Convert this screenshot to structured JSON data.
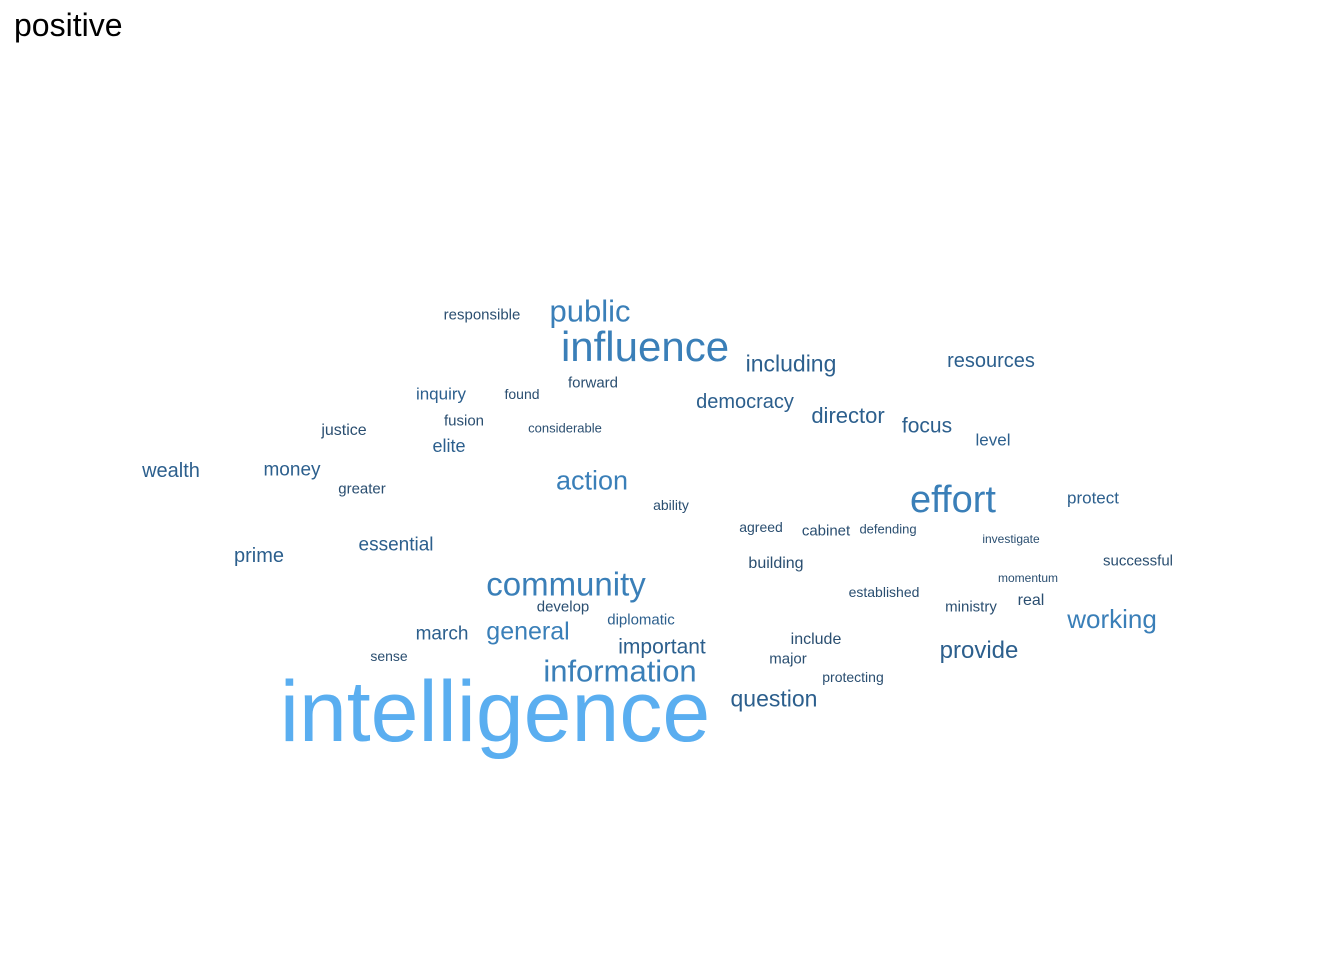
{
  "title": "positive",
  "chart_data": {
    "type": "wordcloud",
    "title": "positive",
    "colors": {
      "highest": "#5aaef0",
      "high": "#3a7fb8",
      "mid": "#2c5f8d",
      "low": "#2a4e70"
    },
    "words": [
      {
        "text": "intelligence",
        "weight": 100
      },
      {
        "text": "influence",
        "weight": 50
      },
      {
        "text": "effort",
        "weight": 45
      },
      {
        "text": "community",
        "weight": 40
      },
      {
        "text": "public",
        "weight": 38
      },
      {
        "text": "information",
        "weight": 38
      },
      {
        "text": "action",
        "weight": 34
      },
      {
        "text": "working",
        "weight": 32
      },
      {
        "text": "general",
        "weight": 30
      },
      {
        "text": "including",
        "weight": 28
      },
      {
        "text": "provide",
        "weight": 28
      },
      {
        "text": "question",
        "weight": 28
      },
      {
        "text": "director",
        "weight": 27
      },
      {
        "text": "democracy",
        "weight": 26
      },
      {
        "text": "important",
        "weight": 26
      },
      {
        "text": "focus",
        "weight": 25
      },
      {
        "text": "resources",
        "weight": 24
      },
      {
        "text": "wealth",
        "weight": 24
      },
      {
        "text": "prime",
        "weight": 24
      },
      {
        "text": "money",
        "weight": 22
      },
      {
        "text": "essential",
        "weight": 22
      },
      {
        "text": "march",
        "weight": 22
      },
      {
        "text": "elite",
        "weight": 20
      },
      {
        "text": "inquiry",
        "weight": 20
      },
      {
        "text": "protect",
        "weight": 19
      },
      {
        "text": "level",
        "weight": 19
      },
      {
        "text": "diplomatic",
        "weight": 18
      },
      {
        "text": "successful",
        "weight": 17
      },
      {
        "text": "building",
        "weight": 17
      },
      {
        "text": "real",
        "weight": 17
      },
      {
        "text": "include",
        "weight": 17
      },
      {
        "text": "justice",
        "weight": 17
      },
      {
        "text": "major",
        "weight": 16
      },
      {
        "text": "responsible",
        "weight": 16
      },
      {
        "text": "develop",
        "weight": 16
      },
      {
        "text": "forward",
        "weight": 16
      },
      {
        "text": "cabinet",
        "weight": 16
      },
      {
        "text": "ministry",
        "weight": 16
      },
      {
        "text": "greater",
        "weight": 16
      },
      {
        "text": "fusion",
        "weight": 16
      },
      {
        "text": "found",
        "weight": 15
      },
      {
        "text": "ability",
        "weight": 15
      },
      {
        "text": "agreed",
        "weight": 15
      },
      {
        "text": "protecting",
        "weight": 15
      },
      {
        "text": "established",
        "weight": 15
      },
      {
        "text": "sense",
        "weight": 15
      },
      {
        "text": "defending",
        "weight": 14
      },
      {
        "text": "considerable",
        "weight": 14
      },
      {
        "text": "momentum",
        "weight": 14
      },
      {
        "text": "investigate",
        "weight": 14
      },
      {
        "text": "resources",
        "weight": 1,
        "skip": true
      }
    ]
  }
}
